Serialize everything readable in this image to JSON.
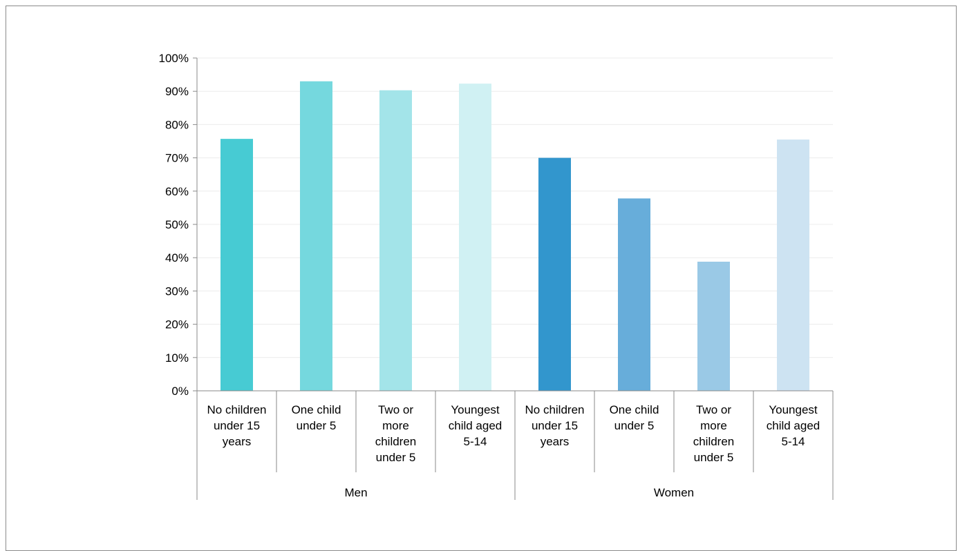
{
  "chart_data": {
    "type": "bar",
    "ylim": [
      0,
      100
    ],
    "yticks": [
      "0%",
      "10%",
      "20%",
      "30%",
      "40%",
      "50%",
      "60%",
      "70%",
      "80%",
      "90%",
      "100%"
    ],
    "grid": true,
    "groups": [
      {
        "label": "Men",
        "categories": [
          {
            "label": [
              "No children",
              "under 15",
              "years"
            ],
            "value": 75.7,
            "color": "#47CBD3"
          },
          {
            "label": [
              "One child",
              "under 5"
            ],
            "value": 93.0,
            "color": "#75D8DE"
          },
          {
            "label": [
              "Two or",
              "more",
              "children",
              "under 5"
            ],
            "value": 90.3,
            "color": "#A3E4E9"
          },
          {
            "label": [
              "Youngest",
              "child aged",
              "5-14"
            ],
            "value": 92.3,
            "color": "#D0F1F3"
          }
        ]
      },
      {
        "label": "Women",
        "categories": [
          {
            "label": [
              "No children",
              "under 15",
              "years"
            ],
            "value": 70.0,
            "color": "#3296CD"
          },
          {
            "label": [
              "One child",
              "under 5"
            ],
            "value": 57.8,
            "color": "#67ADDA"
          },
          {
            "label": [
              "Two or",
              "more",
              "children",
              "under 5"
            ],
            "value": 38.8,
            "color": "#9AC9E6"
          },
          {
            "label": [
              "Youngest",
              "child aged",
              "5-14"
            ],
            "value": 75.5,
            "color": "#CDE3F2"
          }
        ]
      }
    ]
  }
}
